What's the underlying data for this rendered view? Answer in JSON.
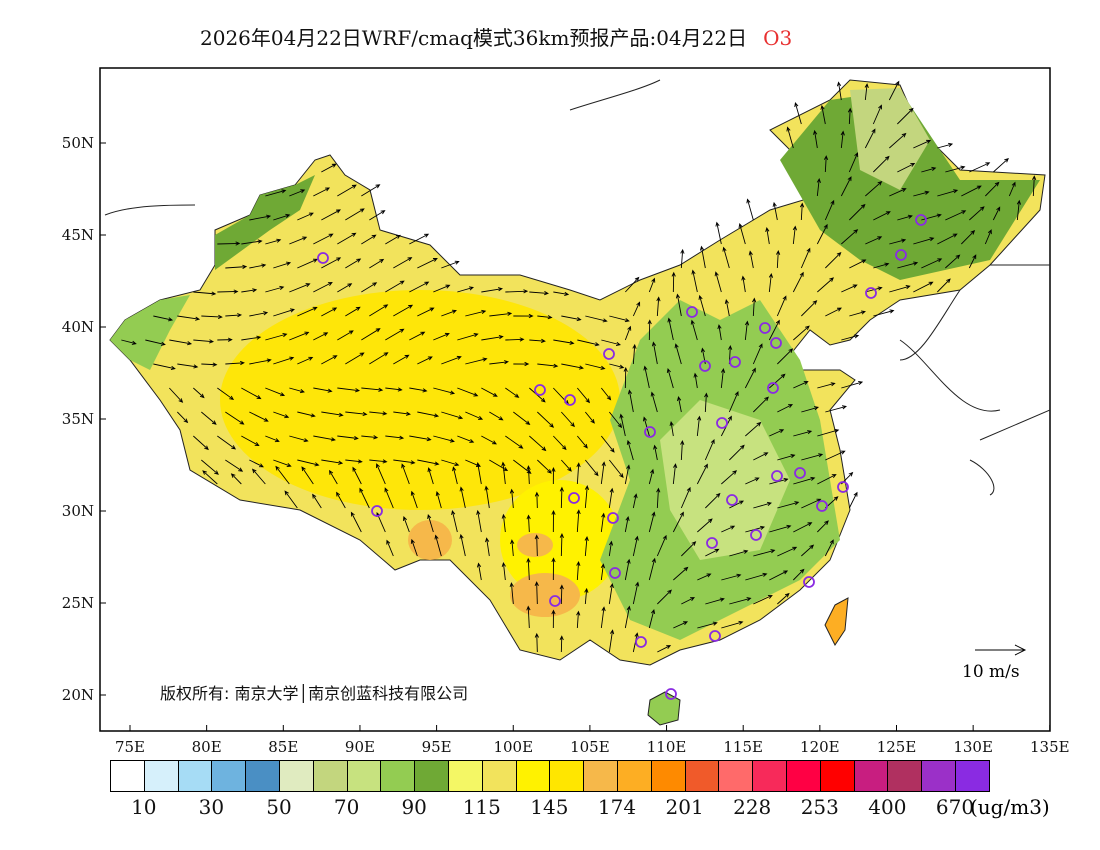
{
  "title": {
    "text": "2026年04月22日WRF/cmaq模式36km预报产品:04月22日",
    "species": "O3"
  },
  "axes": {
    "lon_ticks": [
      "75E",
      "80E",
      "85E",
      "90E",
      "95E",
      "100E",
      "105E",
      "110E",
      "115E",
      "120E",
      "125E",
      "130E",
      "135E"
    ],
    "lat_ticks": [
      "50N",
      "45N",
      "40N",
      "35N",
      "30N",
      "25N",
      "20N"
    ]
  },
  "copyright": "版权所有: 南京大学│南京创蓝科技有限公司",
  "wind_scale_label": "10 m/s",
  "colorbar": {
    "colors": [
      "#ffffff",
      "#d6f0fb",
      "#a6dcf5",
      "#6eb3df",
      "#4a8fc4",
      "#e0ebc0",
      "#c3d67e",
      "#c7e27f",
      "#93cc52",
      "#6fa935",
      "#f4f765",
      "#f2e35c",
      "#fff200",
      "#ffe600",
      "#f6b84a",
      "#fdae23",
      "#fe8a00",
      "#f05a2a",
      "#ff6a6a",
      "#f72a5a",
      "#ff0044",
      "#ff0000",
      "#c81e80",
      "#b03060",
      "#9b30c8",
      "#8a2be2"
    ],
    "labels": [
      "10",
      "30",
      "50",
      "70",
      "90",
      "115",
      "145",
      "174",
      "201",
      "228",
      "253",
      "400",
      "670"
    ],
    "unit": "(ug/m3)"
  }
}
